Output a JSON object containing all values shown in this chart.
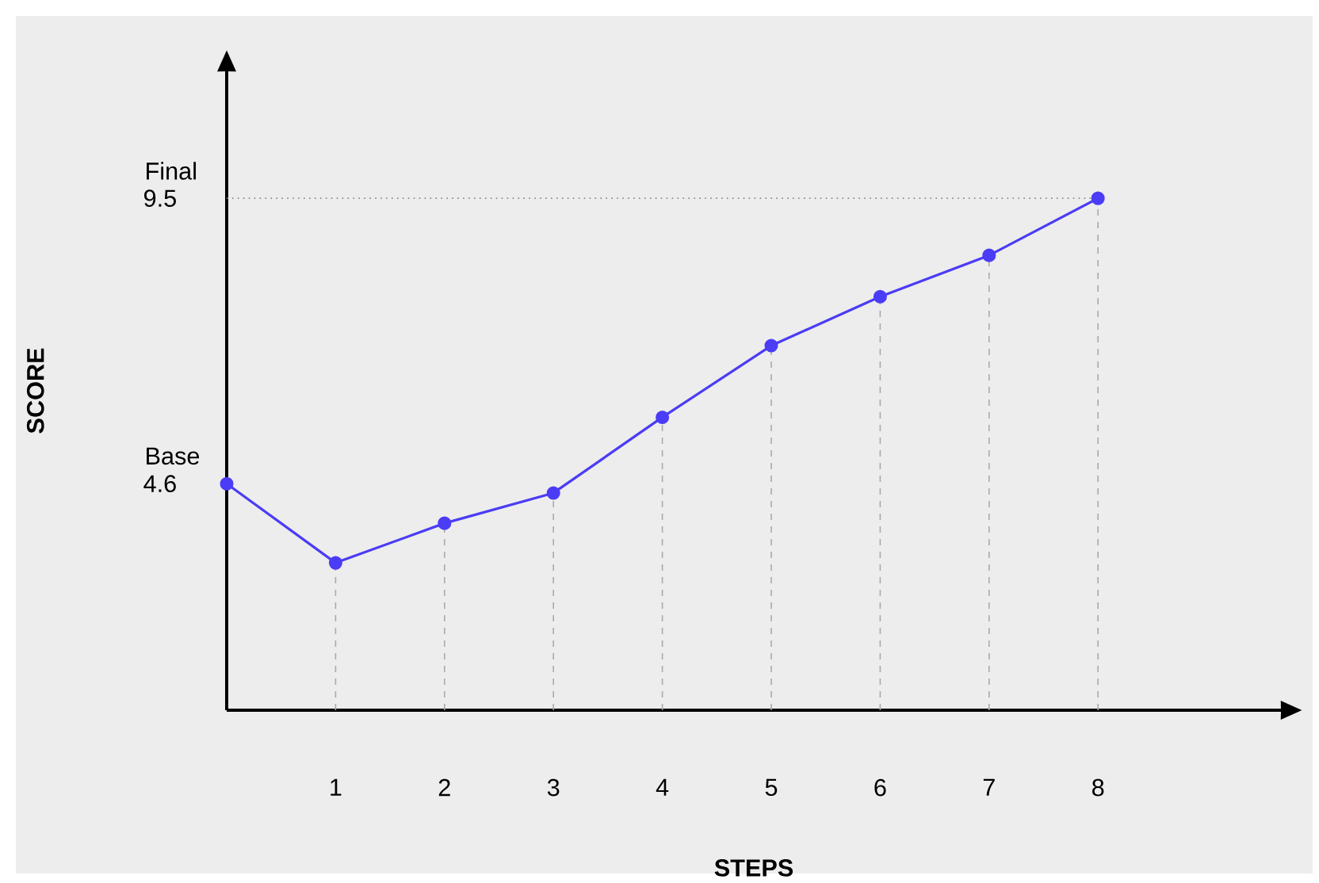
{
  "chart_data": {
    "type": "line",
    "xlabel": "STEPS",
    "ylabel": "SCORE",
    "x": [
      0,
      1,
      2,
      3,
      4,
      5,
      6,
      7,
      8
    ],
    "series": [
      {
        "color": "#4b3cf5",
        "values": [
          4.6,
          3.24,
          3.92,
          4.44,
          5.74,
          6.97,
          7.81,
          8.52,
          9.5
        ]
      }
    ],
    "xlim": [
      0,
      9.68
    ],
    "ylim": [
      0.71,
      11.68
    ],
    "xticks": [
      1,
      2,
      3,
      4,
      5,
      6,
      7,
      8
    ],
    "yticks": [
      4.6,
      9.5
    ],
    "annotations": [
      "Base",
      "Final"
    ],
    "ref_lines": [
      {
        "axis": "y",
        "value": 9.5,
        "color": "#888888",
        "line_style": "dotted"
      },
      {
        "axis": "x",
        "value": 1,
        "color": "#aaaaaa",
        "line_style": "dashed"
      },
      {
        "axis": "x",
        "value": 2,
        "color": "#aaaaaa",
        "line_style": "dashed"
      },
      {
        "axis": "x",
        "value": 3,
        "color": "#aaaaaa",
        "line_style": "dashed"
      },
      {
        "axis": "x",
        "value": 4,
        "color": "#aaaaaa",
        "line_style": "dashed"
      },
      {
        "axis": "x",
        "value": 5,
        "color": "#aaaaaa",
        "line_style": "dashed"
      },
      {
        "axis": "x",
        "value": 6,
        "color": "#aaaaaa",
        "line_style": "dashed"
      },
      {
        "axis": "x",
        "value": 7,
        "color": "#aaaaaa",
        "line_style": "dashed"
      },
      {
        "axis": "x",
        "value": 8,
        "color": "#aaaaaa",
        "line_style": "dashed"
      }
    ],
    "marker": "circle",
    "grid": false
  }
}
